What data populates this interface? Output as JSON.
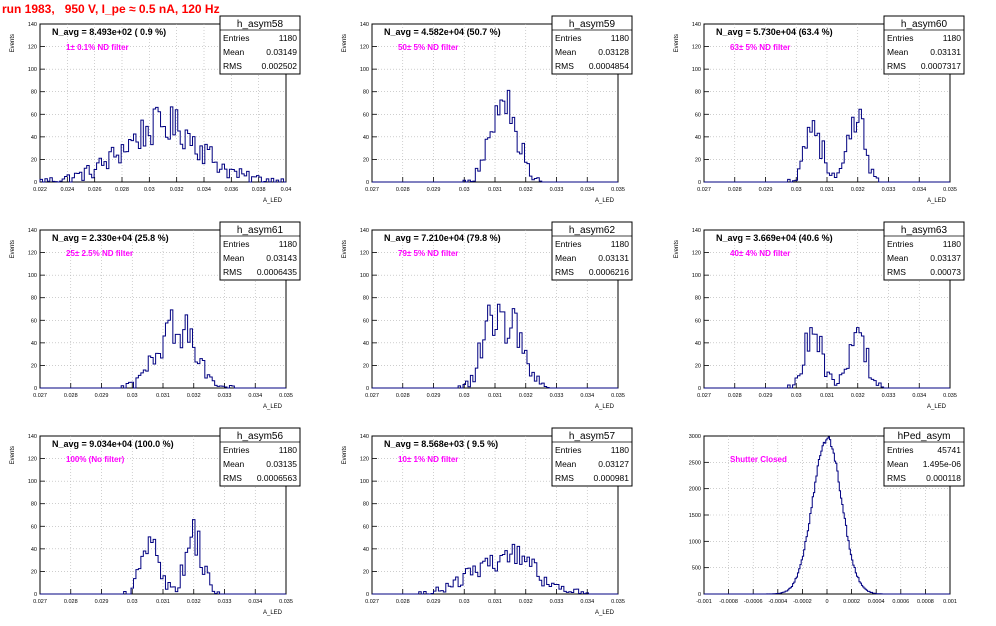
{
  "page_title": "run 1983,   950 V, I_pe ≈ 0.5 nA, 120 Hz",
  "colors": {
    "histogram": "#000080",
    "magenta": "#ff00ff",
    "title_red": "#ff0000",
    "grid": "#b0b0b0"
  },
  "chart_data": [
    {
      "type": "histogram",
      "name": "h_asym58",
      "ylabel": "Events",
      "xlabel": "A_LED",
      "xlim": [
        0.022,
        0.04
      ],
      "ylim": [
        0,
        140
      ],
      "xticks": [
        "0.022",
        "0.024",
        "0.026",
        "0.028",
        "0.03",
        "0.032",
        "0.034",
        "0.036",
        "0.038",
        "0.04"
      ],
      "yticks": [
        "0",
        "20",
        "40",
        "60",
        "80",
        "100",
        "120",
        "140"
      ],
      "n_avg": "N_avg = 8.493e+02 ( 0.9 %)",
      "filter": "1± 0.1% ND filter",
      "stats": [
        [
          "Entries",
          "1180"
        ],
        [
          "Mean",
          "0.03149"
        ],
        [
          "RMS",
          "0.002502"
        ]
      ],
      "nbins": 100,
      "peaks": [
        [
          0.0295,
          0.0022,
          24
        ],
        [
          0.0322,
          0.002,
          28
        ],
        [
          0.031,
          0.0045,
          8
        ]
      ]
    },
    {
      "type": "histogram",
      "name": "h_asym59",
      "ylabel": "Events",
      "xlabel": "A_LED",
      "xlim": [
        0.027,
        0.035
      ],
      "ylim": [
        0,
        140
      ],
      "xticks": [
        "0.027",
        "0.028",
        "0.029",
        "0.03",
        "0.031",
        "0.032",
        "0.033",
        "0.034",
        "0.035"
      ],
      "yticks": [
        "0",
        "20",
        "40",
        "60",
        "80",
        "100",
        "120",
        "140"
      ],
      "n_avg": "N_avg = 4.582e+04 (50.7 %)",
      "filter": "50± 5% ND filter",
      "stats": [
        [
          "Entries",
          "1180"
        ],
        [
          "Mean",
          "0.03128"
        ],
        [
          "RMS",
          "0.0004854"
        ]
      ],
      "nbins": 100,
      "peaks": [
        [
          0.0313,
          0.00042,
          72
        ]
      ]
    },
    {
      "type": "histogram",
      "name": "h_asym60",
      "ylabel": "Events",
      "xlabel": "A_LED",
      "xlim": [
        0.027,
        0.035
      ],
      "ylim": [
        0,
        140
      ],
      "xticks": [
        "0.027",
        "0.028",
        "0.029",
        "0.03",
        "0.031",
        "0.032",
        "0.033",
        "0.034",
        "0.035"
      ],
      "yticks": [
        "0",
        "20",
        "40",
        "60",
        "80",
        "100",
        "120",
        "140"
      ],
      "n_avg": "N_avg = 5.730e+04 (63.4 %)",
      "filter": "63± 5% ND filter",
      "stats": [
        [
          "Entries",
          "1180"
        ],
        [
          "Mean",
          "0.03131"
        ],
        [
          "RMS",
          "0.0007317"
        ]
      ],
      "nbins": 100,
      "peaks": [
        [
          0.03055,
          0.00028,
          52
        ],
        [
          0.03198,
          0.00028,
          52
        ]
      ]
    },
    {
      "type": "histogram",
      "name": "h_asym61",
      "ylabel": "Events",
      "xlabel": "A_LED",
      "xlim": [
        0.027,
        0.035
      ],
      "ylim": [
        0,
        140
      ],
      "xticks": [
        "0.027",
        "0.028",
        "0.029",
        "0.03",
        "0.031",
        "0.032",
        "0.033",
        "0.034",
        "0.035"
      ],
      "yticks": [
        "0",
        "20",
        "40",
        "60",
        "80",
        "100",
        "120",
        "140"
      ],
      "n_avg": "N_avg = 2.330e+04 (25.8 %)",
      "filter": "25± 2.5% ND filter",
      "stats": [
        [
          "Entries",
          "1180"
        ],
        [
          "Mean",
          "0.03143"
        ],
        [
          "RMS",
          "0.0006435"
        ]
      ],
      "nbins": 100,
      "peaks": [
        [
          0.03145,
          0.0006,
          55
        ]
      ]
    },
    {
      "type": "histogram",
      "name": "h_asym62",
      "ylabel": "Events",
      "xlabel": "A_LED",
      "xlim": [
        0.027,
        0.035
      ],
      "ylim": [
        0,
        140
      ],
      "xticks": [
        "0.027",
        "0.028",
        "0.029",
        "0.03",
        "0.031",
        "0.032",
        "0.033",
        "0.034",
        "0.035"
      ],
      "yticks": [
        "0",
        "20",
        "40",
        "60",
        "80",
        "100",
        "120",
        "140"
      ],
      "n_avg": "N_avg = 7.210e+04 (79.8 %)",
      "filter": "79± 5% ND filter",
      "stats": [
        [
          "Entries",
          "1180"
        ],
        [
          "Mean",
          "0.03131"
        ],
        [
          "RMS",
          "0.0006216"
        ]
      ],
      "nbins": 100,
      "peaks": [
        [
          0.0309,
          0.00035,
          58
        ],
        [
          0.0317,
          0.00035,
          50
        ]
      ]
    },
    {
      "type": "histogram",
      "name": "h_asym63",
      "ylabel": "Events",
      "xlabel": "A_LED",
      "xlim": [
        0.027,
        0.035
      ],
      "ylim": [
        0,
        140
      ],
      "xticks": [
        "0.027",
        "0.028",
        "0.029",
        "0.03",
        "0.031",
        "0.032",
        "0.033",
        "0.034",
        "0.035"
      ],
      "yticks": [
        "0",
        "20",
        "40",
        "60",
        "80",
        "100",
        "120",
        "140"
      ],
      "n_avg": "N_avg = 3.669e+04 (40.6 %)",
      "filter": "40± 4% ND filter",
      "stats": [
        [
          "Entries",
          "1180"
        ],
        [
          "Mean",
          "0.03137"
        ],
        [
          "RMS",
          "0.00073"
        ]
      ],
      "nbins": 100,
      "peaks": [
        [
          0.03055,
          0.00028,
          52
        ],
        [
          0.03198,
          0.00028,
          50
        ]
      ]
    },
    {
      "type": "histogram",
      "name": "h_asym56",
      "ylabel": "Events",
      "xlabel": "A_LED",
      "xlim": [
        0.027,
        0.035
      ],
      "ylim": [
        0,
        140
      ],
      "xticks": [
        "0.027",
        "0.028",
        "0.029",
        "0.03",
        "0.031",
        "0.032",
        "0.033",
        "0.034",
        "0.035"
      ],
      "yticks": [
        "0",
        "20",
        "40",
        "60",
        "80",
        "100",
        "120",
        "140"
      ],
      "n_avg": "N_avg = 9.034e+04 (100.0 %)",
      "filter": "100% (No filter)",
      "stats": [
        [
          "Entries",
          "1180"
        ],
        [
          "Mean",
          "0.03135"
        ],
        [
          "RMS",
          "0.0006563"
        ]
      ],
      "nbins": 100,
      "peaks": [
        [
          0.0306,
          0.00028,
          58
        ],
        [
          0.032,
          0.00028,
          50
        ]
      ]
    },
    {
      "type": "histogram",
      "name": "h_asym57",
      "ylabel": "Events",
      "xlabel": "A_LED",
      "xlim": [
        0.027,
        0.035
      ],
      "ylim": [
        0,
        140
      ],
      "xticks": [
        "0.027",
        "0.028",
        "0.029",
        "0.03",
        "0.031",
        "0.032",
        "0.033",
        "0.034",
        "0.035"
      ],
      "yticks": [
        "0",
        "20",
        "40",
        "60",
        "80",
        "100",
        "120",
        "140"
      ],
      "n_avg": "N_avg = 8.568e+03 ( 9.5 %)",
      "filter": "10± 1% ND filter",
      "stats": [
        [
          "Entries",
          "1180"
        ],
        [
          "Mean",
          "0.03127"
        ],
        [
          "RMS",
          "0.000981"
        ]
      ],
      "nbins": 100,
      "peaks": [
        [
          0.0313,
          0.00095,
          34
        ]
      ]
    },
    {
      "type": "histogram",
      "name": "hPed_asym",
      "ylabel": "",
      "xlabel": "",
      "xlim": [
        -0.001,
        0.001
      ],
      "ylim": [
        0,
        3000
      ],
      "xticks": [
        "-0.001",
        "-0.0008",
        "-0.0006",
        "-0.0004",
        "-0.0002",
        "0",
        "0.0002",
        "0.0004",
        "0.0006",
        "0.0008",
        "0.001"
      ],
      "yticks": [
        "0",
        "500",
        "1000",
        "1500",
        "2000",
        "2500",
        "3000"
      ],
      "n_avg": "",
      "filter": "Shutter Closed",
      "stats": [
        [
          "Entries",
          "45741"
        ],
        [
          "Mean",
          "1.495e-06"
        ],
        [
          "RMS",
          "0.000118"
        ]
      ],
      "nbins": 200,
      "peaks": [
        [
          1.5e-06,
          0.000118,
          2950
        ]
      ]
    }
  ]
}
